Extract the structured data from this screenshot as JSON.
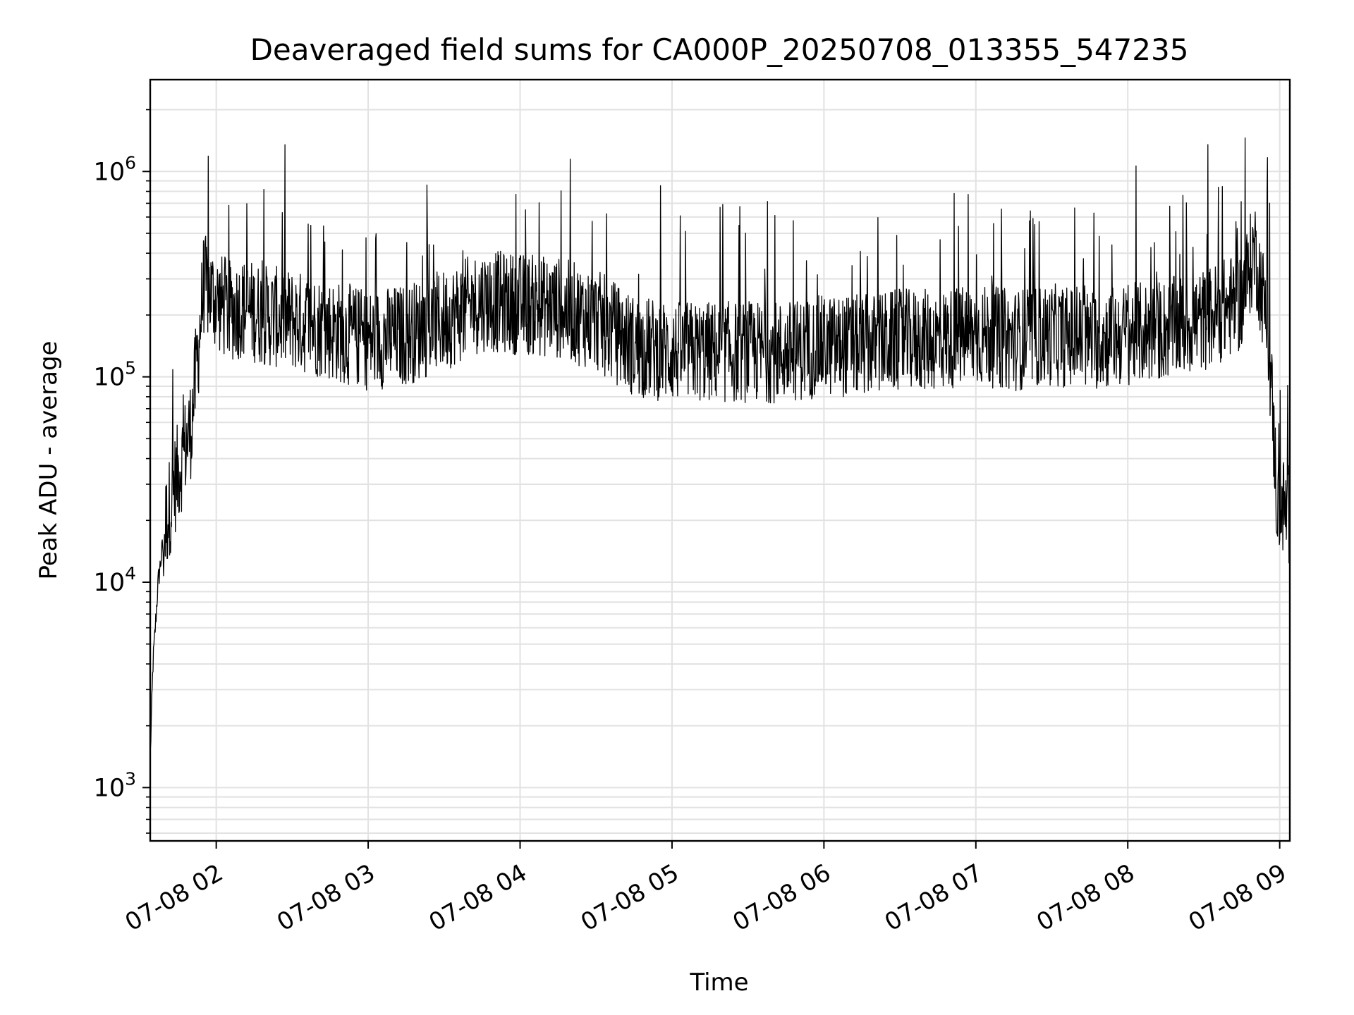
{
  "chart_data": {
    "type": "line",
    "title": "Deaveraged field sums for CA000P_20250708_013355_547235",
    "xlabel": "Time",
    "ylabel": "Peak ADU - average",
    "yscale": "log",
    "xlim": [
      "07-08 01:33:55",
      "07-08 09:04:00"
    ],
    "ylim": [
      550,
      2800000
    ],
    "grid": "major and minor",
    "legend": "none",
    "line_color": "#000000",
    "x_ticks": [
      "07-08 02",
      "07-08 03",
      "07-08 04",
      "07-08 05",
      "07-08 06",
      "07-08 07",
      "07-08 08",
      "07-08 09"
    ],
    "y_ticks": [
      {
        "value": 1000,
        "base": "10",
        "exp": "3"
      },
      {
        "value": 10000,
        "base": "10",
        "exp": "4"
      },
      {
        "value": 100000,
        "base": "10",
        "exp": "5"
      },
      {
        "value": 1000000,
        "base": "10",
        "exp": "6"
      }
    ],
    "series": [
      {
        "x": [
          "07-08 01:34",
          "07-08 01:35",
          "07-08 01:37",
          "07-08 01:40",
          "07-08 01:43",
          "07-08 01:46",
          "07-08 01:50",
          "07-08 01:53",
          "07-08 01:55",
          "07-08 02:00",
          "07-08 02:05",
          "07-08 02:10",
          "07-08 02:15",
          "07-08 02:20",
          "07-08 02:30",
          "07-08 02:45",
          "07-08 03:00",
          "07-08 03:15",
          "07-08 03:30",
          "07-08 03:45",
          "07-08 04:00",
          "07-08 04:15",
          "07-08 04:30",
          "07-08 04:45",
          "07-08 05:00",
          "07-08 05:15",
          "07-08 05:30",
          "07-08 05:45",
          "07-08 06:00",
          "07-08 06:15",
          "07-08 06:30",
          "07-08 06:45",
          "07-08 07:00",
          "07-08 07:15",
          "07-08 07:30",
          "07-08 07:45",
          "07-08 08:00",
          "07-08 08:15",
          "07-08 08:30",
          "07-08 08:45",
          "07-08 08:50",
          "07-08 08:55",
          "07-08 08:57",
          "07-08 08:59",
          "07-08 09:01",
          "07-08 09:04"
        ],
        "y": [
          1500,
          4000,
          10000,
          20000,
          30000,
          40000,
          60000,
          150000,
          300000,
          250000,
          220000,
          230000,
          220000,
          210000,
          200000,
          180000,
          160000,
          170000,
          200000,
          250000,
          240000,
          230000,
          200000,
          150000,
          140000,
          140000,
          140000,
          140000,
          150000,
          150000,
          160000,
          160000,
          170000,
          160000,
          170000,
          160000,
          170000,
          180000,
          200000,
          250000,
          450000,
          200000,
          80000,
          25000,
          25000,
          22000
        ]
      }
    ]
  }
}
